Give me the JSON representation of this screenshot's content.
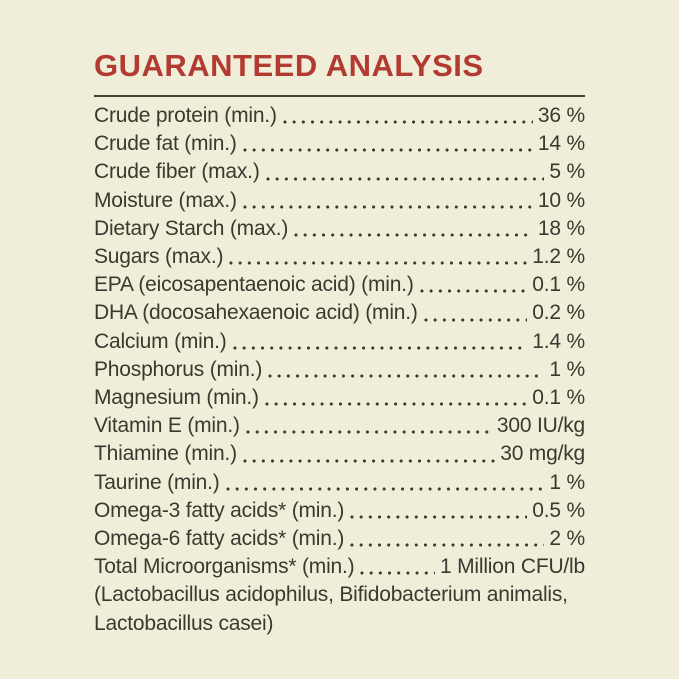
{
  "colors": {
    "background": "#f0eed9",
    "text": "#3b392f",
    "heading": "#b23a31",
    "divider": "#45433a"
  },
  "heading": {
    "title": "GUARANTEED ANALYSIS"
  },
  "analysis": {
    "rows": [
      {
        "label": "Crude protein (min.)",
        "value": "36 %"
      },
      {
        "label": "Crude fat (min.)",
        "value": "14 %"
      },
      {
        "label": "Crude fiber (max.)",
        "value": "5 %"
      },
      {
        "label": "Moisture (max.)",
        "value": "10 %"
      },
      {
        "label": "Dietary Starch (max.)",
        "value": "18 %"
      },
      {
        "label": "Sugars (max.)",
        "value": "1.2 %"
      },
      {
        "label": "EPA (eicosapentaenoic acid) (min.)",
        "value": "0.1 %"
      },
      {
        "label": "DHA (docosahexaenoic acid) (min.)",
        "value": "0.2 %"
      },
      {
        "label": "Calcium (min.)",
        "value": "1.4 %"
      },
      {
        "label": "Phosphorus (min.)",
        "value": "1 %"
      },
      {
        "label": "Magnesium (min.)",
        "value": "0.1 %"
      },
      {
        "label": "Vitamin E (min.)",
        "value": "300 IU/kg"
      },
      {
        "label": "Thiamine (min.)",
        "value": "30 mg/kg"
      },
      {
        "label": "Taurine (min.)",
        "value": "1 %"
      },
      {
        "label": "Omega-3 fatty acids* (min.)",
        "value": "0.5 %"
      },
      {
        "label": "Omega-6 fatty acids* (min.)",
        "value": "2 %"
      },
      {
        "label": "Total Microorganisms* (min.)",
        "value": "1 Million CFU/lb"
      }
    ],
    "footnote_lines": [
      "(Lactobacillus acidophilus, Bifidobacterium animalis,",
      "Lactobacillus casei)"
    ]
  }
}
